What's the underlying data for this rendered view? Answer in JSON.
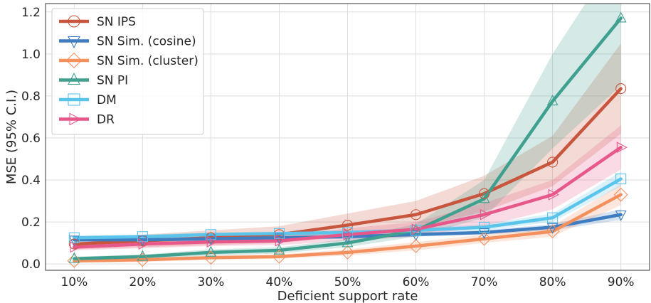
{
  "chart_data": {
    "type": "line",
    "xlabel": "Deficient support rate",
    "ylabel": "MSE (95% C.I.)",
    "categories": [
      "10%",
      "20%",
      "30%",
      "40%",
      "50%",
      "60%",
      "70%",
      "80%",
      "90%"
    ],
    "ylim": [
      -0.03,
      1.24
    ],
    "yticks": [
      "0.0",
      "0.2",
      "0.4",
      "0.6",
      "0.8",
      "1.0",
      "1.2"
    ],
    "ytick_values": [
      0.0,
      0.2,
      0.4,
      0.6,
      0.8,
      1.0,
      1.2
    ],
    "grid": true,
    "legend_position": "top-left",
    "series": [
      {
        "name": "SN IPS",
        "color": "#c8553d",
        "marker": "circle",
        "values": [
          0.095,
          0.11,
          0.125,
          0.14,
          0.185,
          0.235,
          0.335,
          0.485,
          0.835
        ],
        "ci_lower": [
          0.07,
          0.08,
          0.09,
          0.1,
          0.13,
          0.17,
          0.25,
          0.37,
          0.62
        ],
        "ci_upper": [
          0.12,
          0.14,
          0.16,
          0.18,
          0.24,
          0.3,
          0.42,
          0.61,
          1.05
        ]
      },
      {
        "name": "SN Sim. (cosine)",
        "color": "#3d7dc0",
        "marker": "triangle-down",
        "values": [
          0.115,
          0.115,
          0.12,
          0.125,
          0.13,
          0.14,
          0.15,
          0.175,
          0.235
        ],
        "ci_lower": [
          0.105,
          0.105,
          0.11,
          0.115,
          0.12,
          0.13,
          0.14,
          0.16,
          0.21
        ],
        "ci_upper": [
          0.125,
          0.125,
          0.13,
          0.135,
          0.14,
          0.15,
          0.16,
          0.19,
          0.26
        ]
      },
      {
        "name": "SN Sim. (cluster)",
        "color": "#f4905e",
        "marker": "diamond",
        "values": [
          0.015,
          0.02,
          0.03,
          0.035,
          0.055,
          0.085,
          0.12,
          0.155,
          0.33
        ],
        "ci_lower": [
          0.005,
          0.01,
          0.02,
          0.025,
          0.04,
          0.065,
          0.1,
          0.13,
          0.28
        ],
        "ci_upper": [
          0.025,
          0.03,
          0.04,
          0.045,
          0.07,
          0.105,
          0.14,
          0.18,
          0.38
        ]
      },
      {
        "name": "SN PI",
        "color": "#3fa08f",
        "marker": "triangle-up",
        "values": [
          0.025,
          0.035,
          0.055,
          0.065,
          0.1,
          0.16,
          0.31,
          0.775,
          1.17
        ],
        "ci_lower": [
          0.015,
          0.025,
          0.04,
          0.05,
          0.08,
          0.13,
          0.22,
          0.55,
          0.85
        ],
        "ci_upper": [
          0.035,
          0.045,
          0.07,
          0.08,
          0.12,
          0.19,
          0.4,
          1.0,
          1.5
        ]
      },
      {
        "name": "DM",
        "color": "#5bc4ea",
        "marker": "square",
        "values": [
          0.125,
          0.13,
          0.14,
          0.145,
          0.15,
          0.16,
          0.175,
          0.22,
          0.405
        ],
        "ci_lower": [
          0.115,
          0.12,
          0.13,
          0.135,
          0.14,
          0.15,
          0.16,
          0.2,
          0.37
        ],
        "ci_upper": [
          0.135,
          0.14,
          0.15,
          0.155,
          0.16,
          0.17,
          0.19,
          0.24,
          0.44
        ]
      },
      {
        "name": "DR",
        "color": "#e8578a",
        "marker": "triangle-right",
        "values": [
          0.08,
          0.095,
          0.105,
          0.11,
          0.14,
          0.165,
          0.235,
          0.33,
          0.555
        ],
        "ci_lower": [
          0.065,
          0.075,
          0.085,
          0.09,
          0.11,
          0.13,
          0.18,
          0.26,
          0.45
        ],
        "ci_upper": [
          0.095,
          0.115,
          0.125,
          0.13,
          0.17,
          0.2,
          0.29,
          0.4,
          0.66
        ]
      }
    ]
  }
}
